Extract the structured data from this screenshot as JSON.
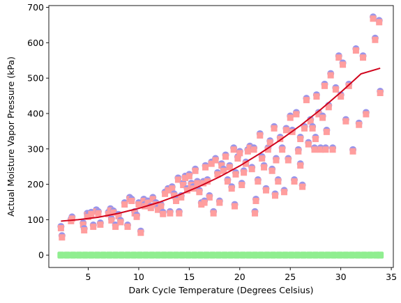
{
  "chart_data": {
    "type": "scatter",
    "xlabel": "Dark Cycle Temperature (Degrees Celsius)",
    "ylabel": "Actual Moisture Vapor Pressure (kPa)",
    "xlim": [
      1.1,
      35.2
    ],
    "ylim": [
      -35,
      705
    ],
    "xticks": [
      5,
      10,
      15,
      20,
      25,
      30,
      35
    ],
    "yticks": [
      0,
      100,
      200,
      300,
      400,
      500,
      600,
      700
    ],
    "grid": false,
    "colors": {
      "points_under": "#9a95ea",
      "points": "#ff9e9e",
      "baseline_points": "#90ee90",
      "fit_line": "#d0021b"
    },
    "series": [
      {
        "marker": "circle-square",
        "x": [
          2.3,
          2.4,
          3.3,
          3.4,
          4.5,
          4.6,
          4.9,
          5.0,
          5.3,
          5.5,
          5.8,
          6.0,
          6.2,
          7.0,
          7.2,
          7.3,
          7.5,
          7.7,
          8.0,
          8.2,
          8.6,
          8.9,
          9.1,
          9.3,
          9.6,
          9.8,
          10.0,
          10.2,
          10.5,
          10.6,
          10.9,
          11.2,
          11.4,
          11.7,
          11.9,
          12.2,
          12.4,
          12.6,
          12.9,
          13.1,
          13.3,
          13.5,
          13.7,
          13.9,
          14.2,
          14.4,
          14.6,
          14.8,
          15.0,
          15.2,
          15.4,
          15.6,
          15.8,
          16.0,
          16.2,
          16.4,
          16.6,
          16.8,
          17.0,
          17.2,
          17.4,
          17.6,
          17.8,
          18.0,
          18.2,
          18.4,
          18.6,
          18.8,
          19.0,
          19.2,
          19.4,
          19.6,
          19.8,
          20.0,
          20.2,
          20.4,
          20.6,
          20.8,
          21.0,
          21.2,
          21.4,
          21.6,
          21.8,
          22.0,
          22.2,
          22.4,
          22.6,
          22.8,
          23.0,
          23.2,
          23.4,
          23.6,
          23.8,
          24.0,
          24.2,
          24.4,
          24.6,
          24.8,
          25.0,
          25.2,
          25.4,
          25.6,
          25.8,
          26.0,
          26.2,
          26.4,
          26.6,
          26.8,
          27.0,
          27.2,
          27.4,
          27.6,
          27.8,
          28.0,
          28.2,
          28.4,
          28.6,
          28.8,
          29.0,
          29.2,
          29.5,
          29.8,
          30.0,
          30.2,
          30.5,
          30.8,
          31.2,
          31.5,
          31.8,
          32.2,
          32.5,
          33.2,
          33.4,
          33.8,
          33.9,
          14.0,
          16.5,
          19.5,
          21.5,
          23.5,
          26.0,
          27.5,
          28.5
        ],
        "y": [
          78,
          52,
          98,
          105,
          88,
          72,
          115,
          110,
          118,
          82,
          125,
          120,
          88,
          118,
          128,
          100,
          122,
          82,
          112,
          95,
          145,
          82,
          160,
          155,
          120,
          110,
          145,
          65,
          155,
          140,
          150,
          135,
          160,
          145,
          130,
          140,
          118,
          175,
          185,
          120,
          190,
          170,
          155,
          215,
          165,
          200,
          220,
          185,
          225,
          200,
          190,
          240,
          205,
          180,
          145,
          205,
          250,
          210,
          165,
          260,
          120,
          270,
          230,
          150,
          255,
          240,
          280,
          210,
          250,
          190,
          300,
          230,
          275,
          290,
          200,
          235,
          260,
          295,
          305,
          245,
          300,
          155,
          210,
          340,
          275,
          250,
          185,
          300,
          320,
          240,
          360,
          270,
          210,
          330,
          300,
          180,
          355,
          270,
          390,
          350,
          210,
          400,
          295,
          330,
          195,
          360,
          440,
          315,
          380,
          360,
          300,
          450,
          400,
          300,
          390,
          480,
          350,
          420,
          510,
          300,
          470,
          560,
          450,
          540,
          380,
          480,
          295,
          580,
          370,
          560,
          400,
          670,
          610,
          660,
          460,
          120,
          150,
          140,
          120,
          170,
          255,
          330,
          300
        ]
      },
      {
        "marker": "square",
        "x": [
          2.3,
          2.9,
          3.5,
          4.1,
          4.7,
          5.3,
          5.9,
          6.5,
          7.1,
          7.7,
          8.3,
          8.9,
          9.5,
          10.1,
          10.7,
          11.3,
          11.9,
          12.5,
          13.1,
          13.7,
          14.3,
          14.9,
          15.5,
          16.1,
          16.7,
          17.3,
          17.9,
          18.5,
          19.1,
          19.7,
          20.3,
          20.9,
          21.5,
          22.1,
          22.7,
          23.3,
          23.9,
          24.5,
          25.1,
          25.7,
          26.3,
          26.9,
          27.5,
          28.1,
          28.7,
          29.3,
          29.9,
          30.5,
          31.1,
          31.7,
          32.3,
          32.9,
          33.5,
          33.9
        ],
        "y": [
          0,
          0,
          0,
          0,
          0,
          0,
          0,
          0,
          0,
          0,
          0,
          0,
          0,
          0,
          0,
          0,
          0,
          0,
          0,
          0,
          0,
          0,
          0,
          0,
          0,
          0,
          0,
          0,
          0,
          0,
          0,
          0,
          0,
          0,
          0,
          0,
          0,
          0,
          0,
          0,
          0,
          0,
          0,
          0,
          0,
          0,
          0,
          0,
          0,
          0,
          0,
          0,
          0,
          0
        ]
      },
      {
        "type": "line",
        "x": [
          2.3,
          4,
          6,
          8,
          10,
          12,
          14,
          16,
          18,
          20,
          22,
          24,
          26,
          28,
          30,
          32,
          33.9
        ],
        "y": [
          96,
          100,
          107,
          118,
          132,
          149,
          170,
          194,
          221,
          252,
          287,
          325,
          366,
          411,
          460,
          512,
          528
        ]
      }
    ]
  }
}
